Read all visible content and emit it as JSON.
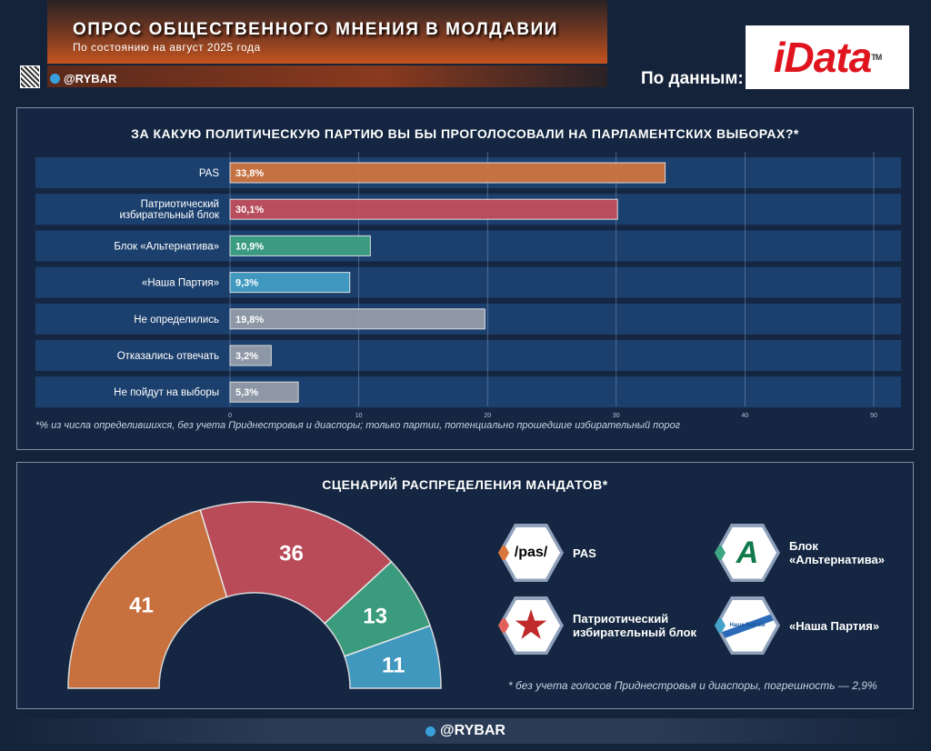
{
  "header": {
    "title": "ОПРОС ОБЩЕСТВЕННОГО МНЕНИЯ В МОЛДАВИИ",
    "subtitle": "По состоянию на август 2025 года",
    "handle": "@RYBAR",
    "source_label": "По данным:",
    "source_logo": "iData",
    "source_logo_tm": "TM"
  },
  "chart_data": [
    {
      "type": "bar",
      "orientation": "horizontal",
      "title": "ЗА КАКУЮ ПОЛИТИЧЕСКУЮ ПАРТИЮ ВЫ БЫ ПРОГОЛОСОВАЛИ НА ПАРЛАМЕНТСКИХ ВЫБОРАХ?*",
      "categories": [
        "PAS",
        "Патриотический избирательный блок",
        "Блок «Альтернатива»",
        "«Наша Партия»",
        "Не определились",
        "Отказались отвечать",
        "Не пойдут на выборы"
      ],
      "values": [
        33.8,
        30.1,
        10.9,
        9.3,
        19.8,
        3.2,
        5.3
      ],
      "labels": [
        "33,8%",
        "30,1%",
        "10,9%",
        "9,3%",
        "19,8%",
        "3,2%",
        "5,3%"
      ],
      "colors": [
        "#d8773e",
        "#c84f5c",
        "#3ea583",
        "#45a2c9",
        "#9aa1ad",
        "#9aa1ad",
        "#9aa1ad"
      ],
      "xlim": [
        0,
        50
      ],
      "xticks": [
        "0",
        "10",
        "20",
        "30",
        "40",
        "50"
      ],
      "grid": true,
      "note": "*% из числа определившихся, без учета Приднестровья и диаспоры; только партии, потенциально прошедшие избирательный порог"
    },
    {
      "type": "pie",
      "subtype": "semicircle-donut",
      "title": "СЦЕНАРИЙ РАСПРЕДЕЛЕНИЯ МАНДАТОВ*",
      "categories": [
        "PAS",
        "Патриотический избирательный блок",
        "Блок «Альтернатива»",
        "«Наша Партия»"
      ],
      "values": [
        41,
        36,
        13,
        11
      ],
      "colors": [
        "#d8773e",
        "#c84f5c",
        "#3ea583",
        "#45a2c9"
      ],
      "legend": [
        "PAS",
        "Патриотический избирательный блок",
        "Блок «Альтернатива»",
        "«Наша Партия»"
      ],
      "legend_logos": [
        "/pas/",
        "star",
        "A",
        "Наша Партия"
      ],
      "note": "* без учета голосов Приднестровья и диаспоры, погрешность — 2,9%"
    }
  ],
  "footer": {
    "handle": "@RYBAR"
  }
}
